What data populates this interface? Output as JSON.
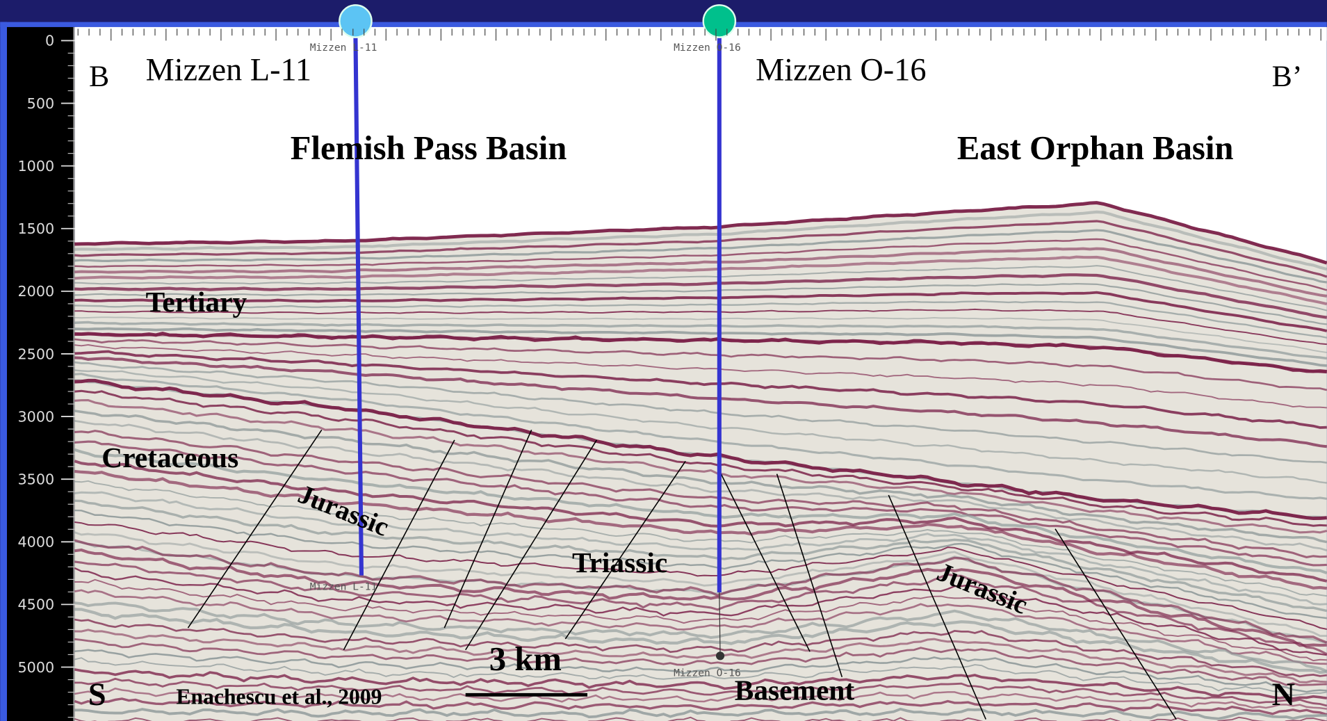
{
  "depth_axis": {
    "ylim": [
      0,
      5430
    ],
    "ticks": [
      0,
      500,
      1000,
      1500,
      2000,
      2500,
      3000,
      3500,
      4000,
      4500,
      5000
    ]
  },
  "section": {
    "left_label": "B",
    "right_label": "B’",
    "bottom_left": "S",
    "bottom_right": "N"
  },
  "wells": [
    {
      "name": "Mizzen L-11",
      "top_tag": "Mizzen L-11",
      "bottom_tag": "Mizzen L-11"
    },
    {
      "name": "Mizzen O-16",
      "top_tag": "Mizzen O-16",
      "bottom_tag": "Mizzen O-16"
    }
  ],
  "basins": [
    "Flemish Pass Basin",
    "East Orphan Basin"
  ],
  "units": {
    "tertiary": "Tertiary",
    "cretaceous": "Cretaceous",
    "jurassic_1": "Jurassic",
    "triassic": "Triassic",
    "jurassic_2": "Jurassic",
    "basement": "Basement"
  },
  "scale_bar": "3 km",
  "credit": "Enachescu et al., 2009"
}
